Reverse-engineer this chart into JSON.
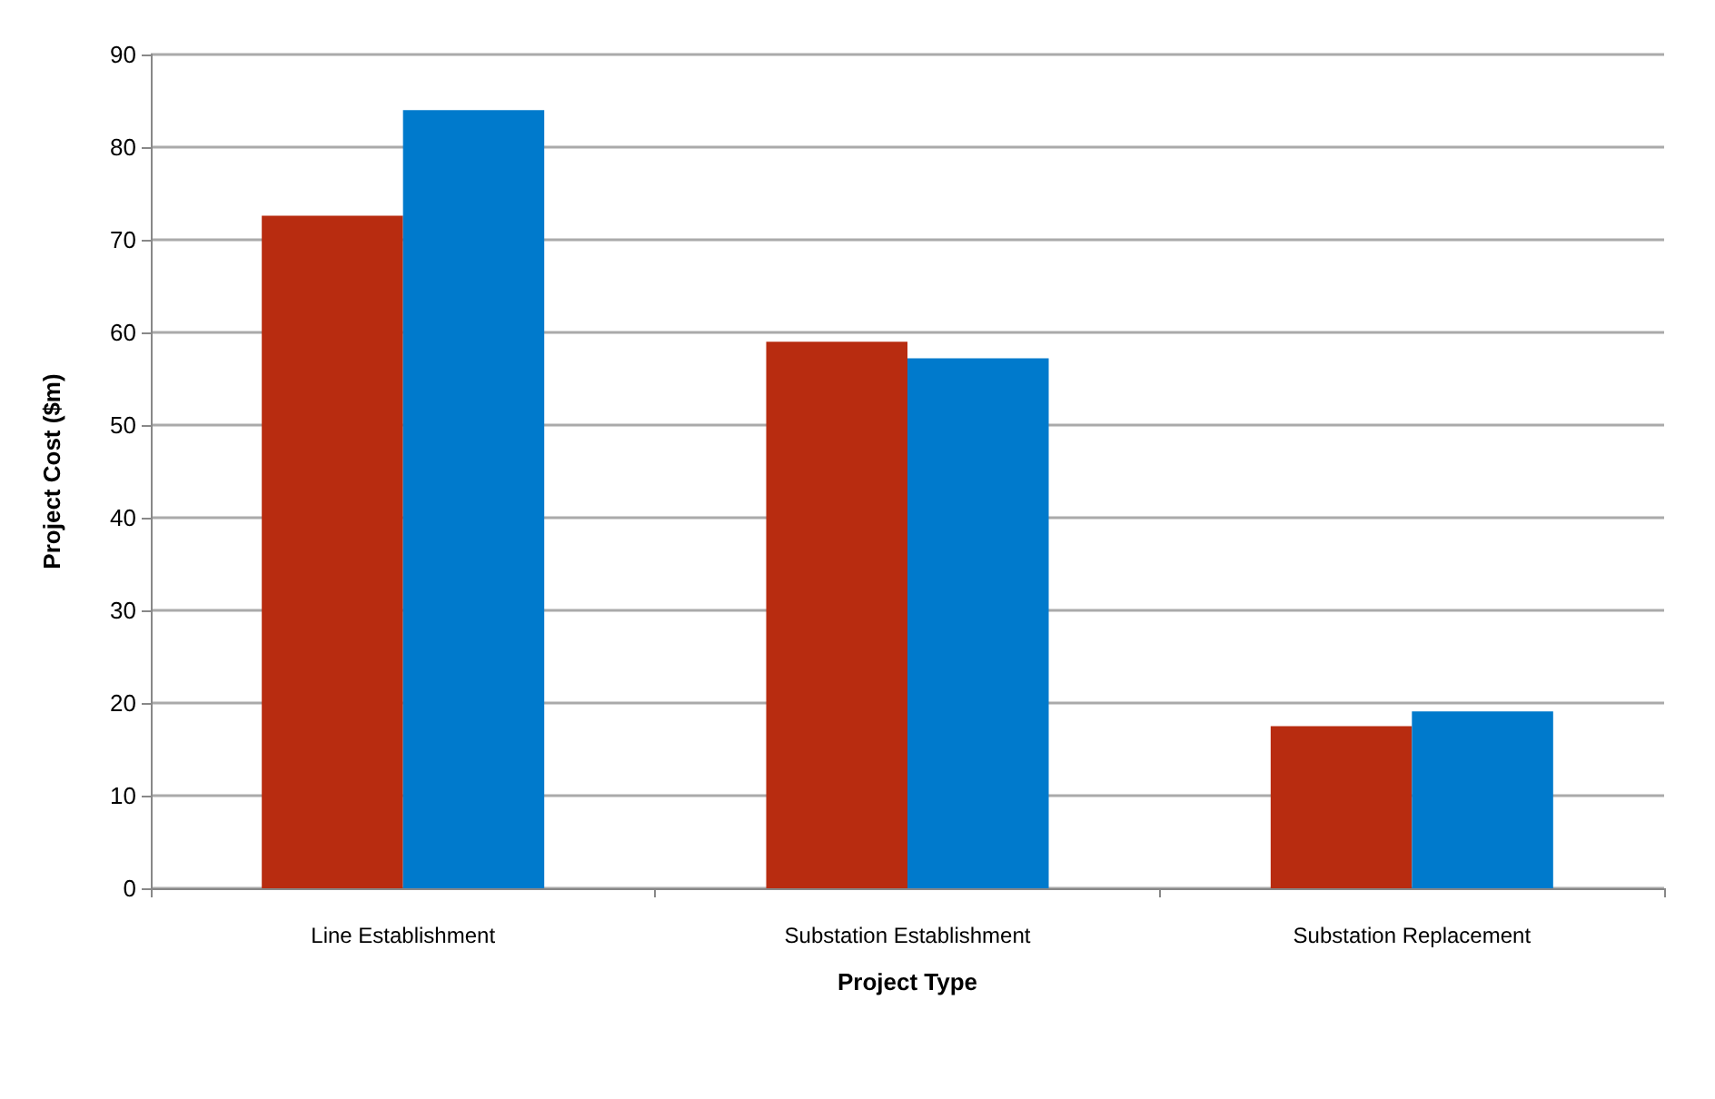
{
  "chart_data": {
    "type": "bar",
    "xlabel": "Project Type",
    "ylabel": "Project Cost ($m)",
    "categories": [
      "Line Establishment",
      "Substation Establishment",
      "Substation Replacement"
    ],
    "series": [
      {
        "color": "#b82c10",
        "values": [
          72.6,
          59.0,
          17.5
        ]
      },
      {
        "color": "#007acc",
        "values": [
          84.0,
          57.2,
          19.1
        ]
      }
    ],
    "ylim": [
      0,
      90
    ],
    "yticks": [
      0,
      10,
      20,
      30,
      40,
      50,
      60,
      70,
      80,
      90
    ],
    "grid": "y"
  }
}
